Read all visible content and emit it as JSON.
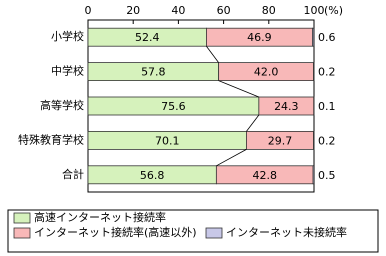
{
  "chart_data": {
    "type": "stacked_barh",
    "categories": [
      "小学校",
      "中学校",
      "高等学校",
      "特殊教育学校",
      "合計"
    ],
    "series": [
      {
        "name": "高速インターネット接続率",
        "color": "#d6f2bc",
        "values": [
          52.4,
          57.8,
          75.6,
          70.1,
          56.8
        ]
      },
      {
        "name": "インターネット接続率(高速以外)",
        "color": "#f8b8b8",
        "values": [
          46.9,
          42.0,
          24.3,
          29.7,
          42.8
        ],
        "value_labels": [
          "46.9",
          "42.0",
          "24.3",
          "29.7",
          "42.8"
        ]
      },
      {
        "name": "インターネット未接続率",
        "color": "#c8c8e8",
        "values": [
          0.6,
          0.2,
          0.1,
          0.2,
          0.5
        ]
      }
    ],
    "xlim": [
      0,
      100
    ],
    "xticks": [
      0,
      20,
      40,
      60,
      80,
      100
    ],
    "x_unit": "(%)"
  }
}
